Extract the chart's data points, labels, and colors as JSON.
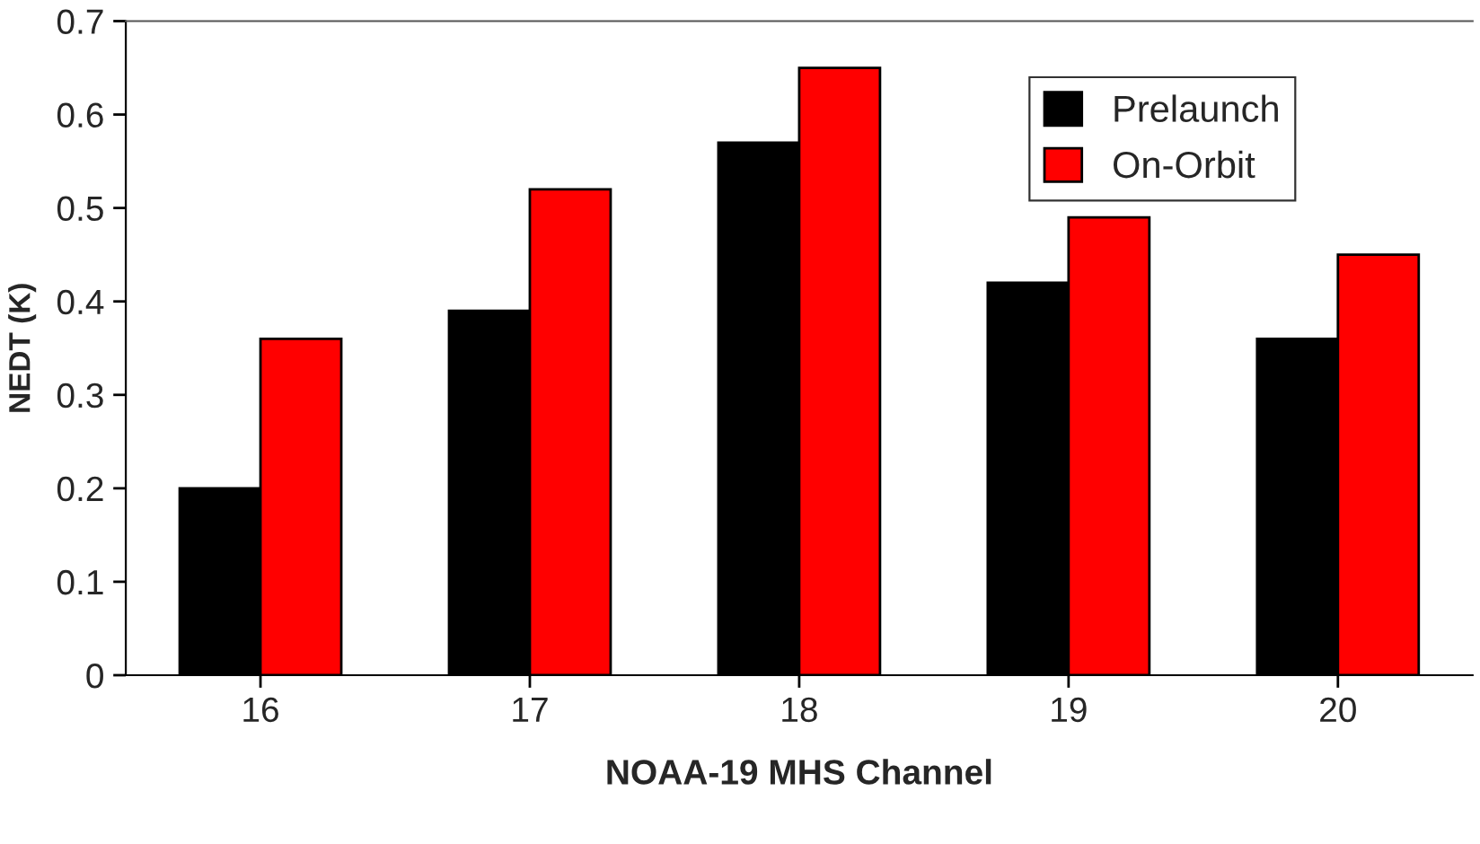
{
  "chart_data": {
    "type": "bar",
    "xlabel": "NOAA-19 MHS Channel",
    "ylabel": "NEDT (K)",
    "categories": [
      "16",
      "17",
      "18",
      "19",
      "20"
    ],
    "series": [
      {
        "name": "Prelaunch",
        "color": "#000000",
        "values": [
          0.2,
          0.39,
          0.57,
          0.42,
          0.36
        ]
      },
      {
        "name": "On-Orbit",
        "color": "#ff0000",
        "values": [
          0.36,
          0.52,
          0.65,
          0.49,
          0.45
        ]
      }
    ],
    "ylim": [
      0,
      0.7
    ],
    "yticks": [
      0,
      0.1,
      0.2,
      0.3,
      0.4,
      0.5,
      0.6,
      0.7
    ],
    "grid": false,
    "legend": "top right"
  }
}
